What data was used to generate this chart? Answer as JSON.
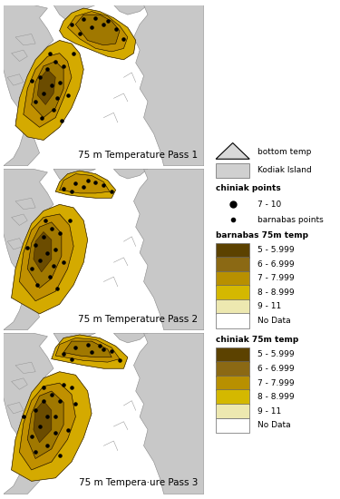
{
  "title_pass1": "75 m Temperature Pass 1",
  "title_pass2": "75 m Temperature Pass 2",
  "title_pass3": "75 m Tempera·ure Pass 3",
  "fig_bg": "#ffffff",
  "panel_bg": "#ffffff",
  "land_color": "#c8c8c8",
  "land_edge": "#888888",
  "water_color": "#ffffff",
  "temp_colors": {
    "outer": "#d4aa00",
    "mid": "#c09000",
    "inner": "#a07800",
    "core": "#6b4c00"
  },
  "legend_items_barnabas": [
    {
      "label": "5 - 5.999",
      "color": "#5c4200"
    },
    {
      "label": "6 - 6.999",
      "color": "#8b6914"
    },
    {
      "label": "7 - 7.999",
      "color": "#b89000"
    },
    {
      "label": "8 - 8.999",
      "color": "#d4b800"
    },
    {
      "label": "9 - 11",
      "color": "#ede8b0"
    },
    {
      "label": "No Data",
      "color": "#ffffff"
    }
  ],
  "legend_items_chiniak": [
    {
      "label": "5 - 5.999",
      "color": "#5c4200"
    },
    {
      "label": "6 - 6.999",
      "color": "#8b6914"
    },
    {
      "label": "7 - 7.999",
      "color": "#b89000"
    },
    {
      "label": "8 - 8.999",
      "color": "#d4b800"
    },
    {
      "label": "9 - 11",
      "color": "#ede8b0"
    },
    {
      "label": "No Data",
      "color": "#ffffff"
    }
  ],
  "panel_label_fontsize": 7.5,
  "legend_fontsize": 6.5
}
